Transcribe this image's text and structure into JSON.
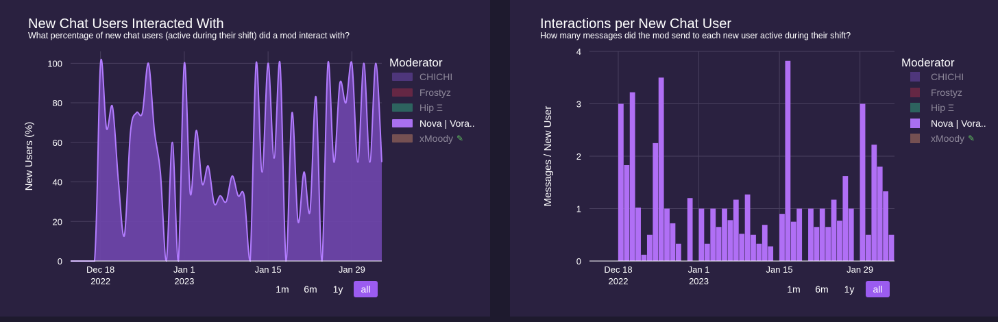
{
  "left": {
    "title": "New Chat Users Interacted With",
    "subtitle": "What percentage of new chat users (active during their shift) did a mod interact with?",
    "legend_title": "Moderator",
    "legend": [
      {
        "label": "CHICHI",
        "color": "#5b3d8f",
        "active": false,
        "icon": ""
      },
      {
        "label": "Frostyz",
        "color": "#7a2a45",
        "active": false,
        "icon": ""
      },
      {
        "label": "Hip Ξ",
        "color": "#2f7a6a",
        "active": false,
        "icon": ""
      },
      {
        "label": "Nova | Vora..",
        "color": "#a970f0",
        "active": true,
        "icon": ""
      },
      {
        "label": "xMoody",
        "color": "#8f6058",
        "active": false,
        "icon": "pencil-icon"
      }
    ],
    "range_buttons": [
      "1m",
      "6m",
      "1y",
      "all"
    ],
    "selected_range": "all"
  },
  "right": {
    "title": "Interactions per New Chat User",
    "subtitle": "How many messages did the mod send to each new user active during their shift?",
    "legend_title": "Moderator",
    "legend": [
      {
        "label": "CHICHI",
        "color": "#5b3d8f",
        "active": false,
        "icon": ""
      },
      {
        "label": "Frostyz",
        "color": "#7a2a45",
        "active": false,
        "icon": ""
      },
      {
        "label": "Hip Ξ",
        "color": "#2f7a6a",
        "active": false,
        "icon": ""
      },
      {
        "label": "Nova | Vora..",
        "color": "#a970f0",
        "active": true,
        "icon": ""
      },
      {
        "label": "xMoody",
        "color": "#8f6058",
        "active": false,
        "icon": "pencil-icon"
      }
    ],
    "range_buttons": [
      "1m",
      "6m",
      "1y",
      "all"
    ],
    "selected_range": "all"
  },
  "chart_data": [
    {
      "type": "area",
      "title": "New Chat Users Interacted With",
      "ylabel": "New Users (%)",
      "xlabel": "",
      "ylim": [
        0,
        106
      ],
      "yticks": [
        0,
        20,
        40,
        60,
        80,
        100
      ],
      "xticks": [
        {
          "date": "2022-12-18",
          "label": [
            "Dec 18",
            "2022"
          ]
        },
        {
          "date": "2023-01-01",
          "label": [
            "Jan 1",
            "2023"
          ]
        },
        {
          "date": "2023-01-15",
          "label": [
            "Jan 15",
            ""
          ]
        },
        {
          "date": "2023-01-29",
          "label": [
            "Jan 29",
            ""
          ]
        }
      ],
      "xrange": [
        "2022-12-13",
        "2023-02-03"
      ],
      "grid": true,
      "series": [
        {
          "name": "Nova | Vora..",
          "color": "#a970f0",
          "x": [
            "2022-12-13",
            "2022-12-15",
            "2022-12-17",
            "2022-12-18",
            "2022-12-19",
            "2022-12-20",
            "2022-12-21",
            "2022-12-22",
            "2022-12-23",
            "2022-12-24",
            "2022-12-25",
            "2022-12-26",
            "2022-12-27",
            "2022-12-28",
            "2022-12-29",
            "2022-12-30",
            "2022-12-31",
            "2023-01-01",
            "2023-01-02",
            "2023-01-03",
            "2023-01-04",
            "2023-01-05",
            "2023-01-06",
            "2023-01-07",
            "2023-01-08",
            "2023-01-09",
            "2023-01-10",
            "2023-01-11",
            "2023-01-12",
            "2023-01-13",
            "2023-01-14",
            "2023-01-15",
            "2023-01-16",
            "2023-01-17",
            "2023-01-18",
            "2023-01-19",
            "2023-01-20",
            "2023-01-21",
            "2023-01-22",
            "2023-01-23",
            "2023-01-24",
            "2023-01-25",
            "2023-01-26",
            "2023-01-27",
            "2023-01-28",
            "2023-01-29",
            "2023-01-30",
            "2023-01-31",
            "2023-02-01",
            "2023-02-02",
            "2023-02-03"
          ],
          "y": [
            0,
            0,
            0,
            100,
            67,
            78,
            40,
            13,
            65,
            75,
            75,
            100,
            66,
            45,
            0,
            60,
            0,
            100,
            34,
            66,
            39,
            48,
            29,
            33,
            30,
            43,
            33,
            33,
            0,
            100,
            45,
            100,
            52,
            100,
            0,
            75,
            20,
            45,
            25,
            83,
            0,
            100,
            50,
            90,
            80,
            100,
            50,
            100,
            50,
            100,
            50
          ]
        }
      ]
    },
    {
      "type": "bar",
      "title": "Interactions per New Chat User",
      "ylabel": "Messages / New User",
      "xlabel": "",
      "ylim": [
        0,
        4
      ],
      "yticks": [
        0,
        1,
        2,
        3,
        4
      ],
      "xticks": [
        {
          "date": "2022-12-18",
          "label": [
            "Dec 18",
            "2022"
          ]
        },
        {
          "date": "2023-01-01",
          "label": [
            "Jan 1",
            "2023"
          ]
        },
        {
          "date": "2023-01-15",
          "label": [
            "Jan 15",
            ""
          ]
        },
        {
          "date": "2023-01-29",
          "label": [
            "Jan 29",
            ""
          ]
        }
      ],
      "xrange": [
        "2022-12-13",
        "2023-02-04"
      ],
      "grid": true,
      "series": [
        {
          "name": "Nova | Vora..",
          "color": "#b06ff5",
          "x": [
            "2022-12-13",
            "2022-12-14",
            "2022-12-15",
            "2022-12-16",
            "2022-12-17",
            "2022-12-18",
            "2022-12-19",
            "2022-12-20",
            "2022-12-21",
            "2022-12-22",
            "2022-12-23",
            "2022-12-24",
            "2022-12-25",
            "2022-12-26",
            "2022-12-27",
            "2022-12-28",
            "2022-12-29",
            "2022-12-30",
            "2022-12-31",
            "2023-01-01",
            "2023-01-02",
            "2023-01-03",
            "2023-01-04",
            "2023-01-05",
            "2023-01-06",
            "2023-01-07",
            "2023-01-08",
            "2023-01-09",
            "2023-01-10",
            "2023-01-11",
            "2023-01-12",
            "2023-01-13",
            "2023-01-14",
            "2023-01-15",
            "2023-01-16",
            "2023-01-17",
            "2023-01-18",
            "2023-01-19",
            "2023-01-20",
            "2023-01-21",
            "2023-01-22",
            "2023-01-23",
            "2023-01-24",
            "2023-01-25",
            "2023-01-26",
            "2023-01-27",
            "2023-01-28",
            "2023-01-29",
            "2023-01-30",
            "2023-01-31",
            "2023-02-01",
            "2023-02-02",
            "2023-02-03"
          ],
          "y": [
            0,
            0,
            0,
            0,
            0,
            3.0,
            1.83,
            3.22,
            1.02,
            0.12,
            0.5,
            2.25,
            3.5,
            1.0,
            0.72,
            0.33,
            0,
            1.2,
            0,
            1.0,
            0.33,
            1.0,
            0.65,
            1.0,
            0.78,
            1.17,
            0.52,
            1.27,
            0.5,
            0.33,
            0.69,
            0.28,
            0,
            0.9,
            3.82,
            0.75,
            1.0,
            0,
            1.0,
            0.65,
            1.0,
            0.65,
            1.17,
            0.77,
            1.62,
            1.0,
            0,
            3.0,
            0.5,
            2.22,
            1.8,
            1.33,
            0.5
          ]
        }
      ]
    }
  ]
}
